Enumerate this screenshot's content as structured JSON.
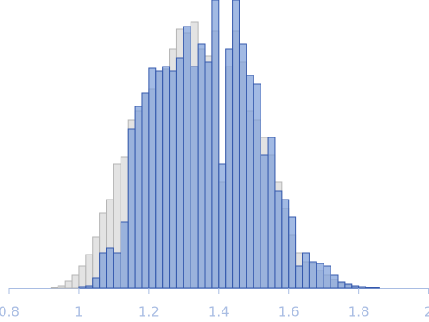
{
  "chart_data": {
    "type": "histogram",
    "bins": [
      0.92,
      0.94,
      0.96,
      0.98,
      1.0,
      1.02,
      1.04,
      1.06,
      1.08,
      1.1,
      1.12,
      1.14,
      1.16,
      1.18,
      1.2,
      1.22,
      1.24,
      1.26,
      1.28,
      1.3,
      1.32,
      1.34,
      1.36,
      1.38,
      1.4,
      1.42,
      1.44,
      1.46,
      1.48,
      1.5,
      1.52,
      1.54,
      1.56,
      1.58,
      1.6,
      1.62,
      1.64,
      1.66,
      1.68,
      1.7,
      1.72,
      1.74,
      1.76,
      1.78,
      1.8,
      1.82,
      1.84,
      1.86
    ],
    "series": [
      {
        "color": "#dcdcdc",
        "edge_color": "#b5b5b5",
        "values": [
          1,
          3,
          8,
          15,
          25,
          38,
          58,
          85,
          100,
          140,
          148,
          190,
          200,
          220,
          225,
          245,
          247,
          270,
          292,
          288,
          300,
          270,
          262,
          290,
          120,
          250,
          290,
          255,
          200,
          190,
          170,
          150,
          120,
          90,
          60,
          40,
          30,
          28,
          20,
          15,
          10,
          6,
          4,
          2,
          1,
          0,
          0
        ]
      },
      {
        "color": "#7b9dd8",
        "edge_color": "#3559ad",
        "values": [
          0,
          0,
          0,
          0,
          2,
          3,
          12,
          40,
          45,
          40,
          75,
          180,
          205,
          220,
          248,
          245,
          250,
          245,
          260,
          295,
          250,
          275,
          255,
          325,
          140,
          270,
          325,
          275,
          240,
          230,
          150,
          170,
          110,
          100,
          80,
          25,
          40,
          30,
          28,
          25,
          15,
          7,
          5,
          3,
          2,
          1,
          1
        ]
      }
    ],
    "xlim": [
      0.8,
      2
    ],
    "xticks": [
      0.8,
      1,
      1.2,
      1.4,
      1.6,
      1.8,
      2
    ],
    "ylim": [
      0,
      325
    ]
  }
}
